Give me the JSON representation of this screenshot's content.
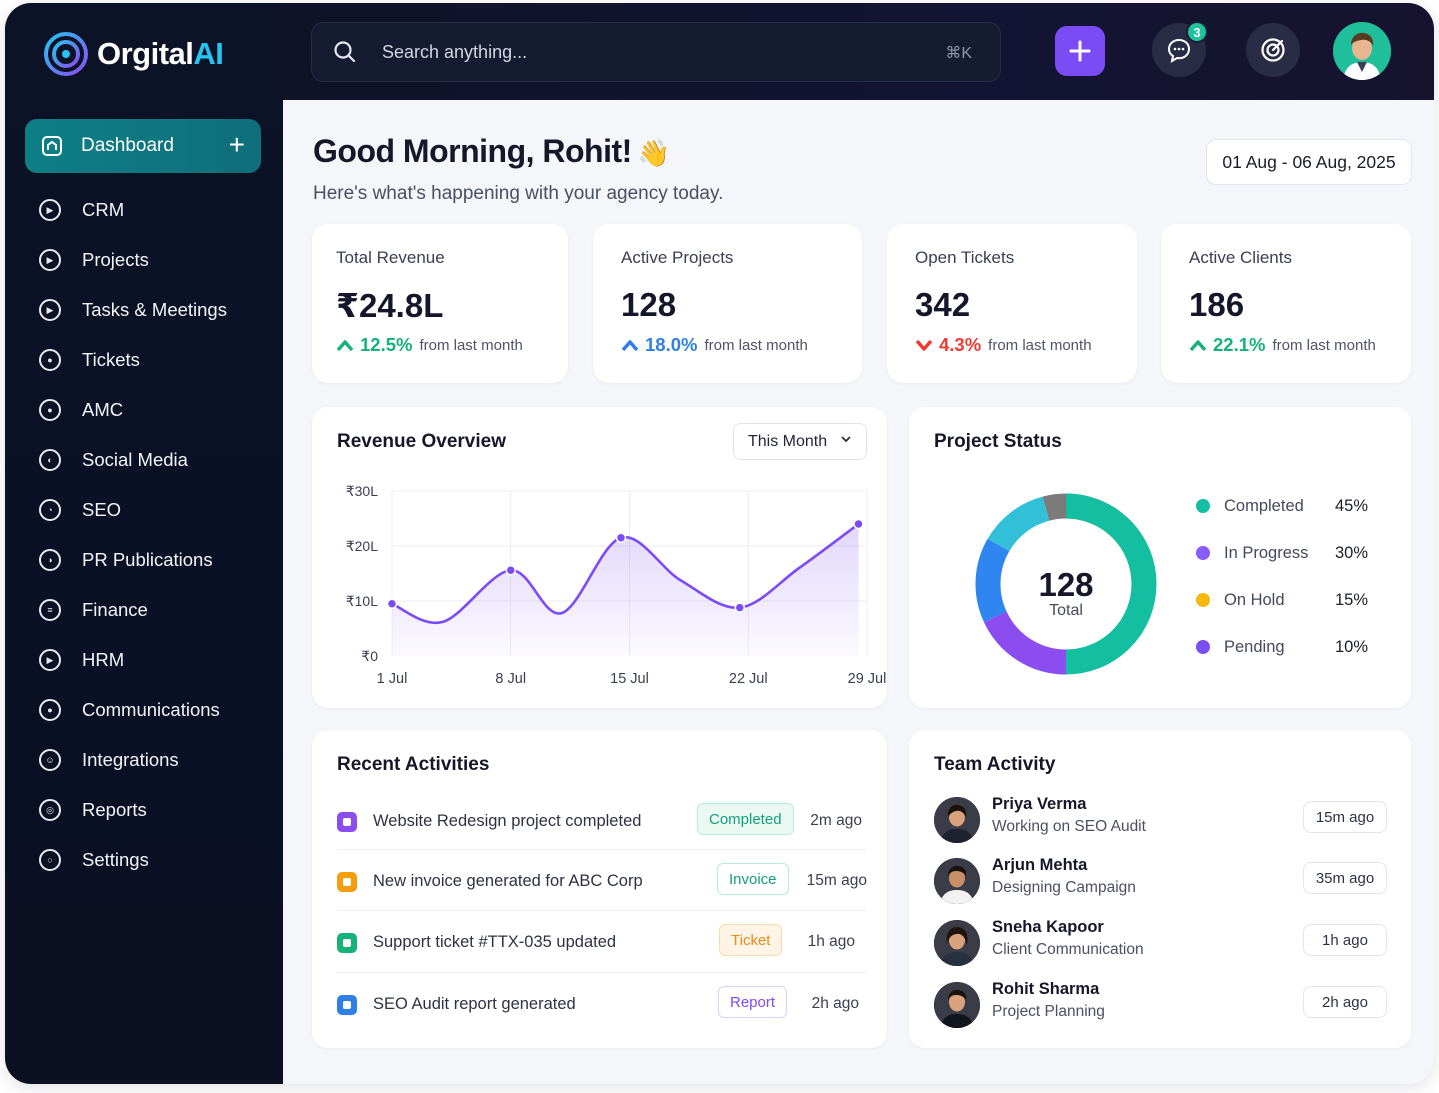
{
  "brand": {
    "name_main": "Orgital",
    "name_accent": "AI"
  },
  "sidebar": {
    "active": {
      "label": "Dashboard",
      "add": "+"
    },
    "items": [
      {
        "label": "CRM",
        "icon": "crm-icon"
      },
      {
        "label": "Projects",
        "icon": "projects-icon"
      },
      {
        "label": "Tasks & Meetings",
        "icon": "tasks-icon"
      },
      {
        "label": "Tickets",
        "icon": "tickets-icon"
      },
      {
        "label": "AMC",
        "icon": "amc-icon"
      },
      {
        "label": "Social Media",
        "icon": "social-media-icon"
      },
      {
        "label": "SEO",
        "icon": "seo-icon"
      },
      {
        "label": "PR Publications",
        "icon": "pr-icon"
      },
      {
        "label": "Finance",
        "icon": "finance-icon"
      },
      {
        "label": "HRM",
        "icon": "hrm-icon"
      },
      {
        "label": "Communications",
        "icon": "communications-icon"
      },
      {
        "label": "Integrations",
        "icon": "integrations-icon"
      },
      {
        "label": "Reports",
        "icon": "reports-icon"
      },
      {
        "label": "Settings",
        "icon": "settings-icon"
      }
    ]
  },
  "header": {
    "search_placeholder": "Search anything...",
    "search_shortcut": "⌘K",
    "notification_count": "3"
  },
  "greeting": {
    "title": "Good Morning, Rohit!",
    "wave": "👋",
    "subtitle": "Here's what's happening with your agency today.",
    "date_range": "01 Aug - 06 Aug, 2025"
  },
  "stats": [
    {
      "title": "Total Revenue",
      "value": "₹24.8L",
      "direction": "up",
      "pct": "12.5%",
      "note": "from last month",
      "color": "#16b27a"
    },
    {
      "title": "Active Projects",
      "value": "128",
      "direction": "up",
      "pct": "18.0%",
      "note": "from last month",
      "color": "#2f7fe6"
    },
    {
      "title": "Open Tickets",
      "value": "342",
      "direction": "down",
      "pct": "4.3%",
      "note": "from last month",
      "color": "#ef3b32"
    },
    {
      "title": "Active Clients",
      "value": "186",
      "direction": "up",
      "pct": "22.1%",
      "note": "from last month",
      "color": "#16b27a"
    }
  ],
  "revenue": {
    "title": "Revenue Overview",
    "period": "This Month",
    "chart_data": {
      "type": "area",
      "y_ticks": [
        "₹0",
        "₹10L",
        "₹20L",
        "₹30L"
      ],
      "x_ticks": [
        "1 Jul",
        "8 Jul",
        "15 Jul",
        "22 Jul",
        "29 Jul"
      ],
      "ylim": [
        0,
        30
      ],
      "xlim": [
        1,
        29
      ],
      "x": [
        1,
        4,
        8,
        11,
        14.5,
        18,
        21.5,
        25,
        28.5
      ],
      "y": [
        9.5,
        6.2,
        15.6,
        7.8,
        21.5,
        13.8,
        8.8,
        16,
        24
      ],
      "color": "#7b4cf5",
      "grid": true
    }
  },
  "project_status": {
    "title": "Project Status",
    "total_value": "128",
    "total_label": "Total",
    "legend": [
      {
        "label": "Completed",
        "pct": "45%",
        "color": "#13bfa0"
      },
      {
        "label": "In Progress",
        "pct": "30%",
        "color": "#8b5cf6"
      },
      {
        "label": "On Hold",
        "pct": "15%",
        "color": "#f5b90b"
      },
      {
        "label": "Pending",
        "pct": "10%",
        "color": "#7c4df0"
      }
    ],
    "ring_colors": [
      "#13bfa0",
      "#8b4cf0",
      "#2f86f0",
      "#32c0d8",
      "#7b7b7b",
      "#f05a3c",
      "#f5b90b",
      "#13bfa0"
    ]
  },
  "recent_activities": {
    "title": "Recent Activities",
    "items": [
      {
        "text": "Website Redesign project completed",
        "tag": "Completed",
        "time": "2m ago",
        "sq": "#8b4cf0",
        "tag_color": "#13a07a",
        "tag_bg": "#eafaf3",
        "tag_border": "#b7ebd6"
      },
      {
        "text": "New invoice generated for ABC Corp",
        "tag": "Invoice",
        "time": "15m ago",
        "sq": "#f59e0b",
        "tag_color": "#13a07a",
        "tag_bg": "#ffffff",
        "tag_border": "#b7ebd6"
      },
      {
        "text": "Support ticket #TTX-035 updated",
        "tag": "Ticket",
        "time": "1h ago",
        "sq": "#16b27a",
        "tag_color": "#e98a1a",
        "tag_bg": "#fff4e6",
        "tag_border": "#fbd9aa"
      },
      {
        "text": "SEO Audit report generated",
        "tag": "Report",
        "time": "2h ago",
        "sq": "#2f7fe6",
        "tag_color": "#7b4cf5",
        "tag_bg": "#ffffff",
        "tag_border": "#dccff8"
      }
    ]
  },
  "team_activity": {
    "title": "Team Activity",
    "items": [
      {
        "name": "Priya Verma",
        "task": "Working on SEO Audit",
        "time": "15m ago"
      },
      {
        "name": "Arjun Mehta",
        "task": "Designing Campaign",
        "time": "35m ago"
      },
      {
        "name": "Sneha Kapoor",
        "task": "Client Communication",
        "time": "1h ago"
      },
      {
        "name": "Rohit Sharma",
        "task": "Project Planning",
        "time": "2h ago"
      }
    ]
  }
}
